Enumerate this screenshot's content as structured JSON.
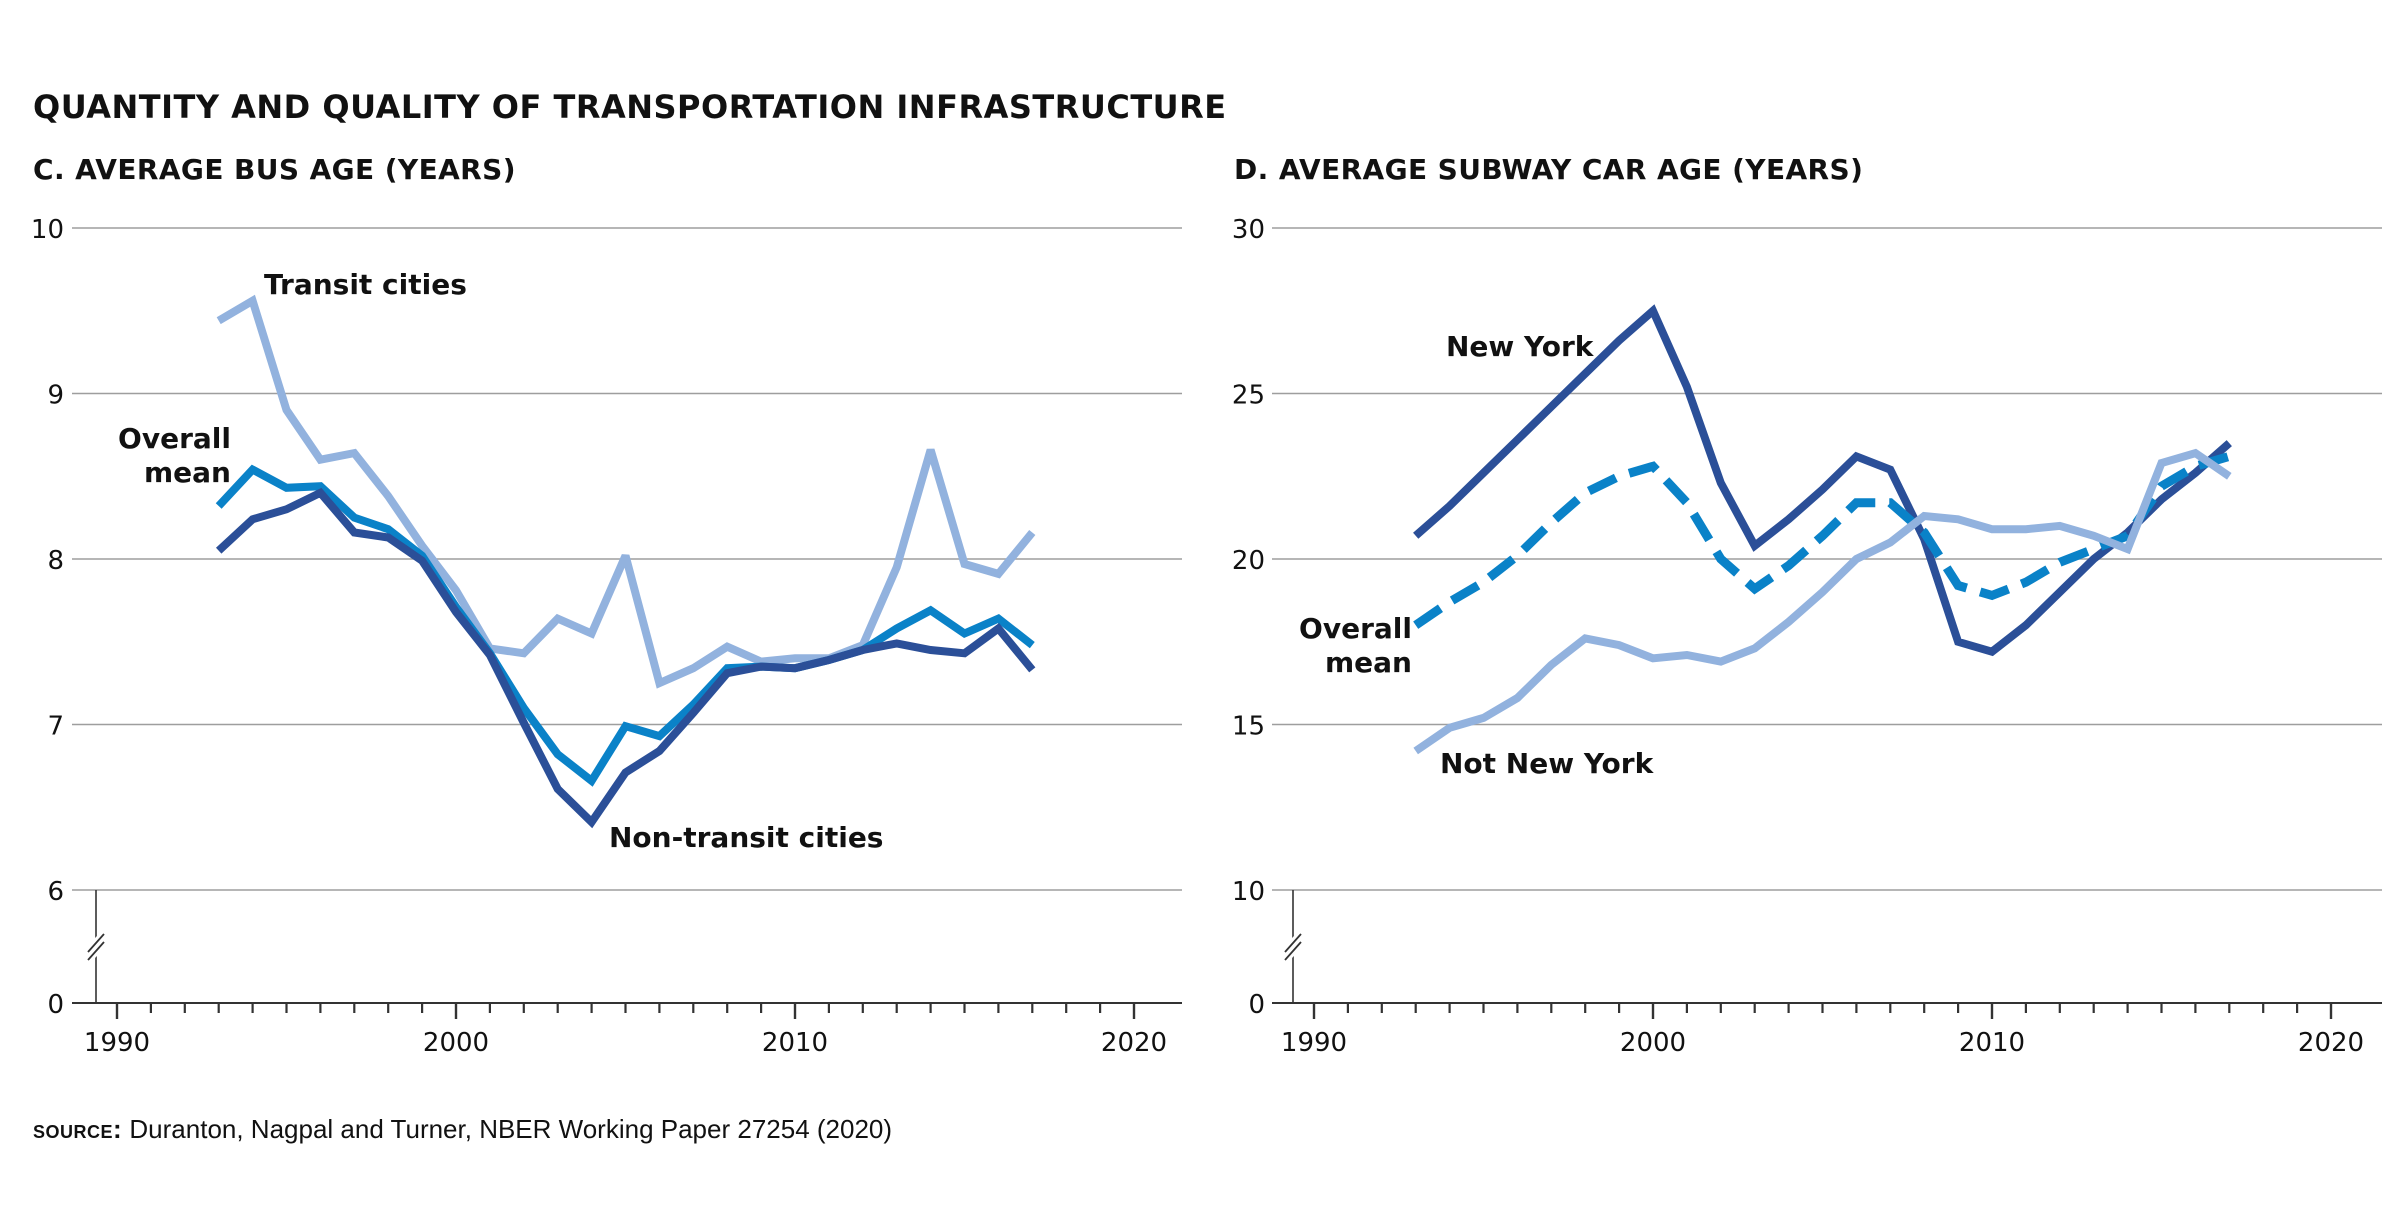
{
  "title": "QUANTITY AND QUALITY OF TRANSPORTATION INFRASTRUCTURE",
  "source": {
    "label": "SOURCE:",
    "text": "Duranton, Nagpal and Turner, NBER Working Paper 27254 (2020)"
  },
  "colors": {
    "light_blue": "#92b2de",
    "mid_blue": "#0a82c8",
    "dark_blue": "#2b4f98",
    "grid": "#9e9e9e",
    "axis": "#333333"
  },
  "chart_data": [
    {
      "type": "line",
      "title": "C. AVERAGE BUS AGE (YEARS)",
      "xlabel": "",
      "ylabel": "",
      "x_ticks": [
        1990,
        2000,
        2010,
        2020
      ],
      "y_ticks": [
        0,
        6,
        7,
        8,
        9,
        10
      ],
      "y_axis_break": "between 0 and 6",
      "grid": true,
      "legend": "inline labels",
      "x": [
        1993,
        1994,
        1995,
        1996,
        1997,
        1998,
        1999,
        2000,
        2001,
        2002,
        2003,
        2004,
        2005,
        2006,
        2007,
        2008,
        2009,
        2010,
        2011,
        2012,
        2013,
        2014,
        2015,
        2016,
        2017
      ],
      "series": [
        {
          "name": "Transit cities",
          "color": "#92b2de",
          "style": "solid",
          "values": [
            9.44,
            9.56,
            8.9,
            8.6,
            8.64,
            8.38,
            8.08,
            7.81,
            7.46,
            7.43,
            7.64,
            7.55,
            8.02,
            7.25,
            7.34,
            7.47,
            7.38,
            7.4,
            7.4,
            7.48,
            7.95,
            8.66,
            7.97,
            7.91,
            8.16
          ]
        },
        {
          "name": "Overall mean",
          "color": "#0a82c8",
          "style": "solid",
          "values": [
            8.32,
            8.54,
            8.43,
            8.44,
            8.25,
            8.18,
            8.02,
            7.71,
            7.43,
            7.1,
            6.82,
            6.66,
            6.99,
            6.93,
            7.12,
            7.34,
            7.35,
            7.34,
            7.39,
            7.45,
            7.58,
            7.69,
            7.55,
            7.64,
            7.48
          ]
        },
        {
          "name": "Non-transit cities",
          "color": "#2b4f98",
          "style": "solid",
          "values": [
            8.05,
            8.24,
            8.3,
            8.4,
            8.16,
            8.13,
            7.99,
            7.68,
            7.42,
            7.01,
            6.61,
            6.41,
            6.71,
            6.84,
            7.07,
            7.31,
            7.35,
            7.34,
            7.39,
            7.45,
            7.49,
            7.45,
            7.43,
            7.58,
            7.33
          ]
        }
      ],
      "labels": {
        "transit": "Transit cities",
        "overall_line1": "Overall",
        "overall_line2": "mean",
        "nontransit": "Non-transit cities"
      }
    },
    {
      "type": "line",
      "title": "D. AVERAGE SUBWAY CAR AGE (YEARS)",
      "xlabel": "",
      "ylabel": "",
      "x_ticks": [
        1990,
        2000,
        2010,
        2020
      ],
      "y_ticks": [
        0,
        10,
        15,
        20,
        25,
        30
      ],
      "y_axis_break": "between 0 and 10",
      "grid": true,
      "legend": "inline labels",
      "x": [
        1993,
        1994,
        1995,
        1996,
        1997,
        1998,
        1999,
        2000,
        2001,
        2002,
        2003,
        2004,
        2005,
        2006,
        2007,
        2008,
        2009,
        2010,
        2011,
        2012,
        2013,
        2014,
        2015,
        2016,
        2017
      ],
      "series": [
        {
          "name": "New York",
          "color": "#2b4f98",
          "style": "solid",
          "values": [
            20.7,
            21.6,
            22.6,
            23.6,
            24.6,
            25.6,
            26.6,
            27.5,
            25.2,
            22.3,
            20.4,
            21.2,
            22.1,
            23.1,
            22.7,
            20.6,
            17.5,
            17.2,
            18.0,
            19.0,
            20.0,
            20.8,
            21.8,
            22.6,
            23.5
          ]
        },
        {
          "name": "Overall mean",
          "color": "#0a82c8",
          "style": "dashed",
          "values": [
            18.0,
            18.7,
            19.3,
            20.1,
            21.1,
            22.0,
            22.5,
            22.8,
            21.7,
            20.0,
            19.1,
            19.8,
            20.7,
            21.7,
            21.7,
            20.8,
            19.2,
            18.9,
            19.3,
            19.9,
            20.3,
            20.7,
            22.2,
            22.8,
            23.1
          ]
        },
        {
          "name": "Not New York",
          "color": "#92b2de",
          "style": "solid",
          "values": [
            14.2,
            14.9,
            15.2,
            15.8,
            16.8,
            17.6,
            17.4,
            17.0,
            17.1,
            16.9,
            17.3,
            18.1,
            19.0,
            20.0,
            20.5,
            21.3,
            21.2,
            20.9,
            20.9,
            21.0,
            20.7,
            20.3,
            22.9,
            23.2,
            22.5
          ]
        }
      ],
      "labels": {
        "ny": "New York",
        "overall_line1": "Overall",
        "overall_line2": "mean",
        "notny": "Not New York"
      }
    }
  ]
}
